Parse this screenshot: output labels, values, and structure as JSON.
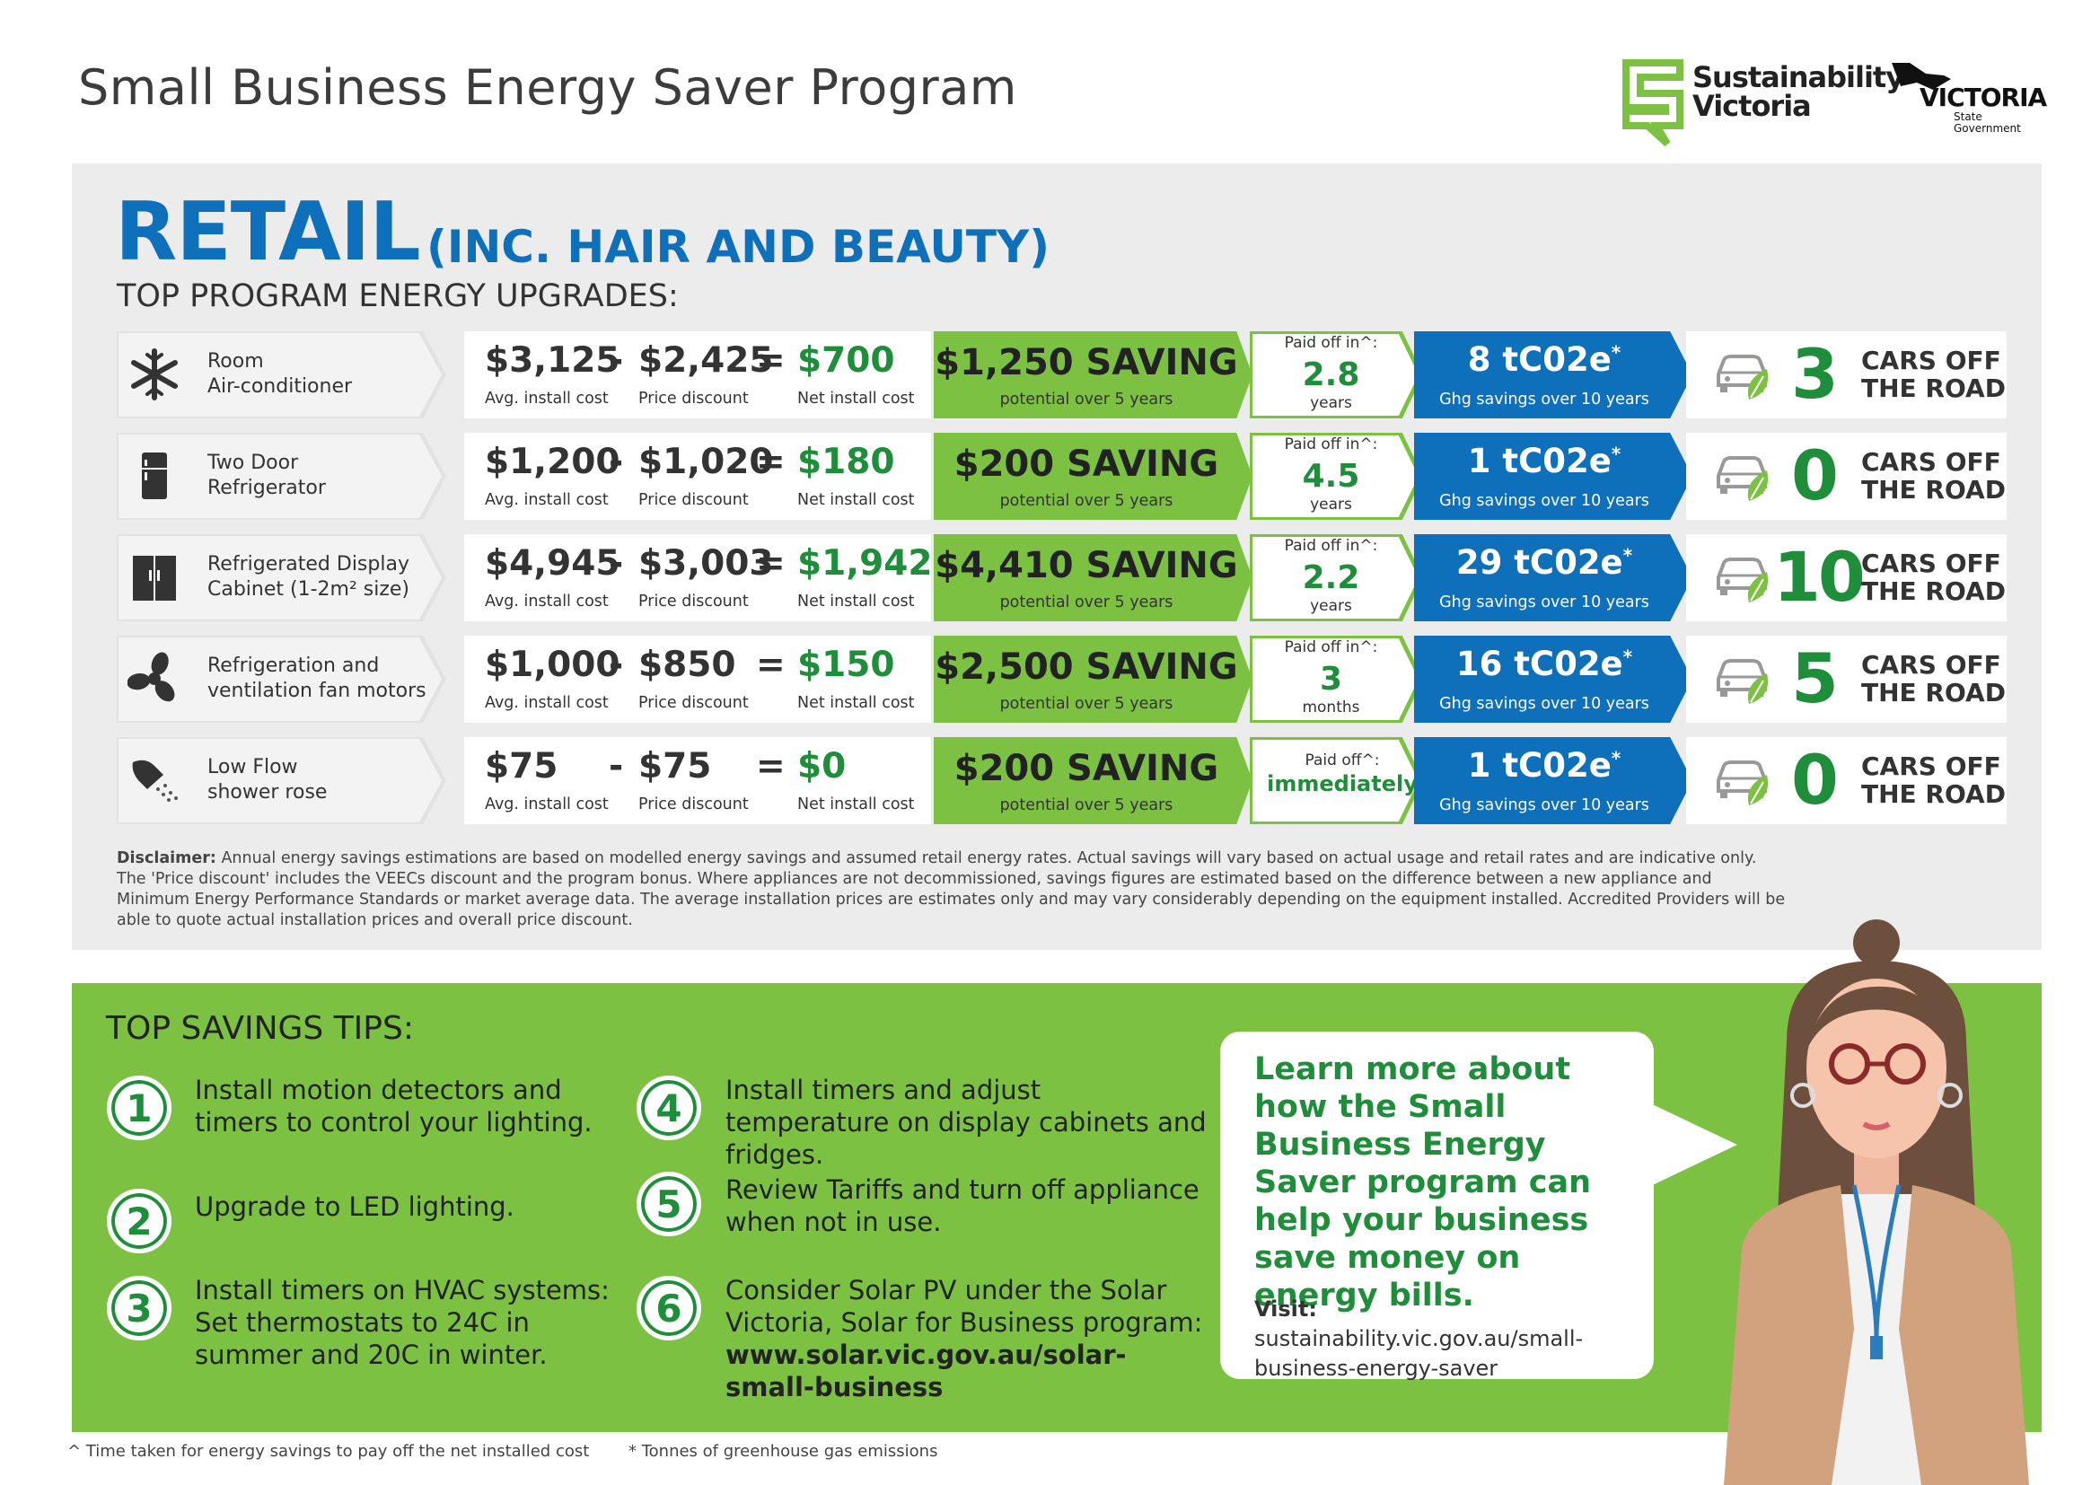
{
  "header": {
    "title": "Small Business Energy Saver Program",
    "logos": {
      "sustainability_victoria": [
        "Sustainability",
        "Victoria"
      ],
      "victoria": {
        "name": "VICTORIA",
        "tagline": [
          "State",
          "Government"
        ]
      }
    }
  },
  "panel": {
    "heading": "RETAIL",
    "subheading": "(INC. HAIR AND BEAUTY)",
    "section": "TOP PROGRAM ENERGY UPGRADES:",
    "operators": [
      "-",
      "="
    ],
    "labels": {
      "install": "Avg. install cost",
      "discount": "Price discount",
      "net": "Net install cost",
      "saving": "potential over 5 years",
      "ghg": "Ghg savings over 10 years",
      "cars": [
        "CARS OFF",
        "THE ROAD"
      ]
    },
    "rows": [
      {
        "item": [
          "Room",
          "Air-conditioner"
        ],
        "install": "$3,125",
        "discount": "$2,425",
        "net": "$700",
        "saving": "$1,250 SAVING",
        "paid_label": "Paid off in^:",
        "paid": "2.8",
        "paid_unit": "years",
        "ghg": "8 tC02e",
        "ghg_mark": "*",
        "cars": "3"
      },
      {
        "item": [
          "Two Door",
          "Refrigerator"
        ],
        "install": "$1,200",
        "discount": "$1,020",
        "net": "$180",
        "saving": "$200 SAVING",
        "paid_label": "Paid off in^:",
        "paid": "4.5",
        "paid_unit": "years",
        "ghg": "1 tC02e",
        "ghg_mark": "*",
        "cars": "0"
      },
      {
        "item": [
          "Refrigerated Display",
          "Cabinet (1-2m² size)"
        ],
        "install": "$4,945",
        "discount": "$3,003",
        "net": "$1,942",
        "saving": "$4,410 SAVING",
        "paid_label": "Paid off in^:",
        "paid": "2.2",
        "paid_unit": "years",
        "ghg": "29 tC02e",
        "ghg_mark": "*",
        "cars": "10"
      },
      {
        "item": [
          "Refrigeration and",
          "ventilation fan motors"
        ],
        "install": "$1,000",
        "discount": "$850",
        "net": "$150",
        "saving": "$2,500 SAVING",
        "paid_label": "Paid off in^:",
        "paid": "3",
        "paid_unit": "months",
        "ghg": "16 tC02e",
        "ghg_mark": "*",
        "cars": "5"
      },
      {
        "item": [
          "Low Flow",
          "shower rose"
        ],
        "install": "$75",
        "discount": "$75",
        "net": "$0",
        "saving": "$200 SAVING",
        "paid_label": "Paid off^:",
        "paid": "immediately",
        "ghg": "1 tC02e",
        "ghg_mark": "*",
        "cars": "0"
      }
    ],
    "disclaimer": {
      "label": "Disclaimer:",
      "text": "Annual energy savings estimations are based on modelled energy savings and assumed retail energy rates. Actual savings will vary based on actual usage and retail rates and are indicative only. The 'Price discount' includes the VEECs discount and the program bonus. Where appliances are not decommissioned, savings figures are estimated based on the difference between a new appliance and Minimum Energy Performance Standards or market average data. The average installation prices are estimates only and may vary considerably depending on the equipment installed. Accredited Providers will be able to quote actual installation prices and overall price discount."
    }
  },
  "tips": {
    "heading": "TOP SAVINGS TIPS:",
    "items": [
      {
        "number": "1",
        "text": "Install motion detectors and timers to control your lighting."
      },
      {
        "number": "2",
        "text": "Upgrade to LED lighting."
      },
      {
        "number": "3",
        "text": "Install timers on HVAC systems: Set thermostats to 24C in summer and 20C in winter."
      },
      {
        "number": "4",
        "text": "Install timers and adjust temperature on display cabinets and fridges."
      },
      {
        "number": "5",
        "text": "Review Tariffs and turn off appliance when not in use."
      },
      {
        "number": "6",
        "text": "Consider Solar PV under the Solar Victoria, Solar for Business program:",
        "link": "www.solar.vic.gov.au/solar-small-business"
      }
    ]
  },
  "bubble": {
    "message": "Learn more about how the Small Business Energy Saver program can help your business save money on energy bills.",
    "visit_label": "Visit:",
    "url": "sustainability.vic.gov.au/small-business-energy-saver"
  },
  "footnotes": [
    "^ Time taken for energy savings to pay off the net installed cost",
    "* Tonnes of greenhouse gas emissions"
  ]
}
